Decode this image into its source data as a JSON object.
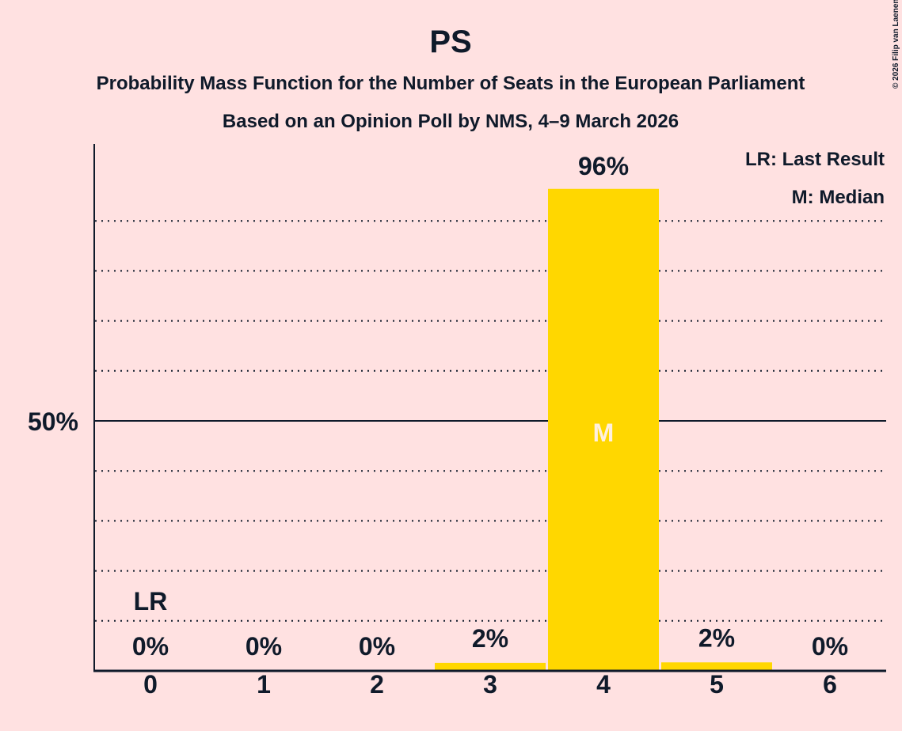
{
  "chart_data": {
    "type": "bar",
    "title": "PS",
    "subtitle": "Probability Mass Function for the Number of Seats in the European Parliament",
    "subtitle2": "Based on an Opinion Poll by NMS, 4–9 March 2026",
    "categories": [
      "0",
      "1",
      "2",
      "3",
      "4",
      "5",
      "6"
    ],
    "values": [
      0,
      0,
      0,
      1.6,
      96.4,
      1.7,
      0
    ],
    "value_labels": [
      "0%",
      "0%",
      "0%",
      "2%",
      "96%",
      "2%",
      "0%"
    ],
    "ylim": [
      0,
      100
    ],
    "y_tick_label": "50%",
    "y_tick_value": 50,
    "grid_step": 10,
    "last_result_index": 0,
    "last_result_label": "LR",
    "median_index": 4,
    "median_label": "M",
    "legend": [
      "LR: Last Result",
      "M: Median"
    ],
    "legend_position": "top-right",
    "bar_color": "#FFD700",
    "copyright": "© 2026 Filip van Laenen"
  }
}
